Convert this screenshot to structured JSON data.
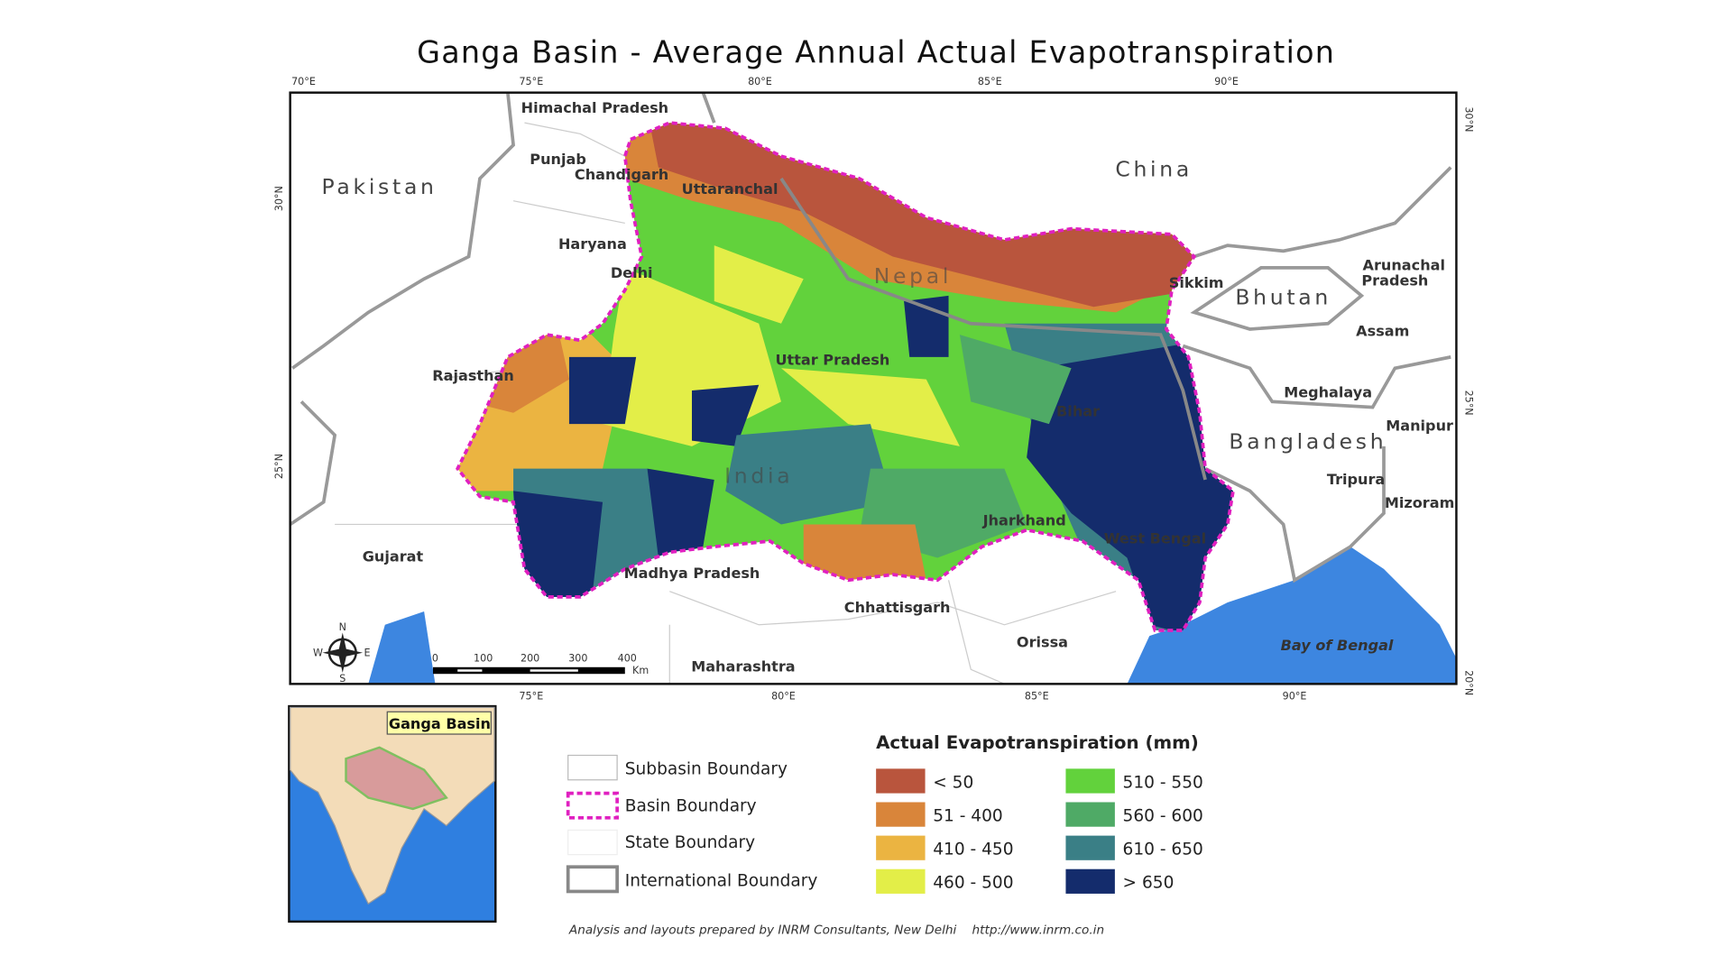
{
  "title": "Ganga Basin - Average Annual Actual Evapotranspiration",
  "graticule": {
    "top": [
      "70°E",
      "75°E",
      "80°E",
      "85°E",
      "90°E"
    ],
    "bottom": [
      "75°E",
      "80°E",
      "85°E",
      "90°E"
    ],
    "left": [
      "30°N",
      "25°N"
    ],
    "right": [
      "30°N",
      "25°N",
      "20°N"
    ]
  },
  "places": [
    "Himachal Pradesh",
    "Punjab",
    "Chandigarh",
    "Uttaranchal",
    "Pakistan",
    "China",
    "Haryana",
    "Delhi",
    "Nepal",
    "Sikkim",
    "Bhutan",
    [
      "Arunachal",
      "Pradesh"
    ],
    "Assam",
    "Uttar Pradesh",
    "Rajasthan",
    "Meghalaya",
    "Bihar",
    "Manipur",
    "Bangladesh",
    "India",
    "Tripura",
    "Mizoram",
    "Jharkhand",
    "West Bengal",
    "Gujarat",
    "Madhya Pradesh",
    "Chhattisgarh",
    "Orissa",
    "Maharashtra",
    "Bay of Bengal"
  ],
  "scale_bar": {
    "labels": [
      "0",
      "100",
      "200",
      "300",
      "400"
    ],
    "unit": "Km"
  },
  "compass": [
    "N",
    "E",
    "S",
    "W"
  ],
  "inset": {
    "title": "Ganga Basin"
  },
  "boundary_legend": [
    "Subbasin Boundary",
    "Basin Boundary",
    "State Boundary",
    "International Boundary"
  ],
  "legend": {
    "title": "Actual Evapotranspiration (mm)",
    "items": [
      {
        "label": "< 50",
        "color": "#b9553d"
      },
      {
        "label": "51 - 400",
        "color": "#d9853a"
      },
      {
        "label": "410 - 450",
        "color": "#ebb441"
      },
      {
        "label": "460 - 500",
        "color": "#e3ee48"
      },
      {
        "label": "510 - 550",
        "color": "#62d23c"
      },
      {
        "label": "560 - 600",
        "color": "#4faa66"
      },
      {
        "label": "610 - 650",
        "color": "#3a7f86"
      },
      {
        "label": "> 650",
        "color": "#142c6c"
      }
    ]
  },
  "credit": "Analysis and layouts prepared by INRM Consultants, New Delhi    http://www.inrm.co.in"
}
